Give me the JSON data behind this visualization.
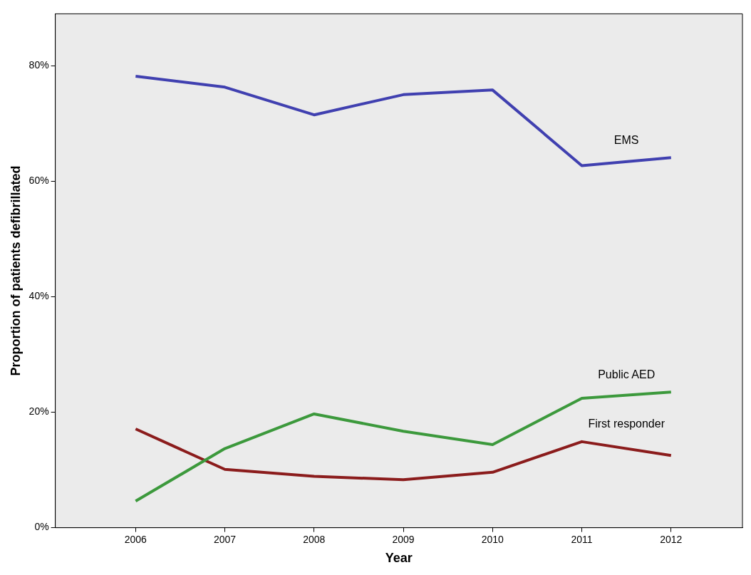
{
  "chart_data": {
    "type": "line",
    "xlabel": "Year",
    "ylabel": "Proportion of patients defibrillated",
    "x": [
      2006,
      2007,
      2008,
      2009,
      2010,
      2011,
      2012
    ],
    "series": [
      {
        "name": "EMS",
        "color": "#4040b0",
        "values": [
          78.2,
          76.3,
          71.5,
          75.0,
          75.8,
          62.7,
          64.1
        ]
      },
      {
        "name": "Public AED",
        "color": "#3c993c",
        "values": [
          4.6,
          13.7,
          19.7,
          16.7,
          14.4,
          22.4,
          23.5
        ]
      },
      {
        "name": "First responder",
        "color": "#8b1c1c",
        "values": [
          17.1,
          10.1,
          8.9,
          8.3,
          9.6,
          14.9,
          12.5
        ]
      }
    ],
    "xlim": [
      2005.1,
      2012.8
    ],
    "xticks": [
      2006,
      2007,
      2008,
      2009,
      2010,
      2011,
      2012
    ],
    "ylim": [
      0,
      89
    ],
    "yticks": [
      {
        "value": 0,
        "label": "0%"
      },
      {
        "value": 20,
        "label": "20%"
      },
      {
        "value": 40,
        "label": "40%"
      },
      {
        "value": 60,
        "label": "60%"
      },
      {
        "value": 80,
        "label": "80%"
      }
    ],
    "grid": false,
    "legend": false,
    "marker": "none",
    "line_style": "solid"
  }
}
